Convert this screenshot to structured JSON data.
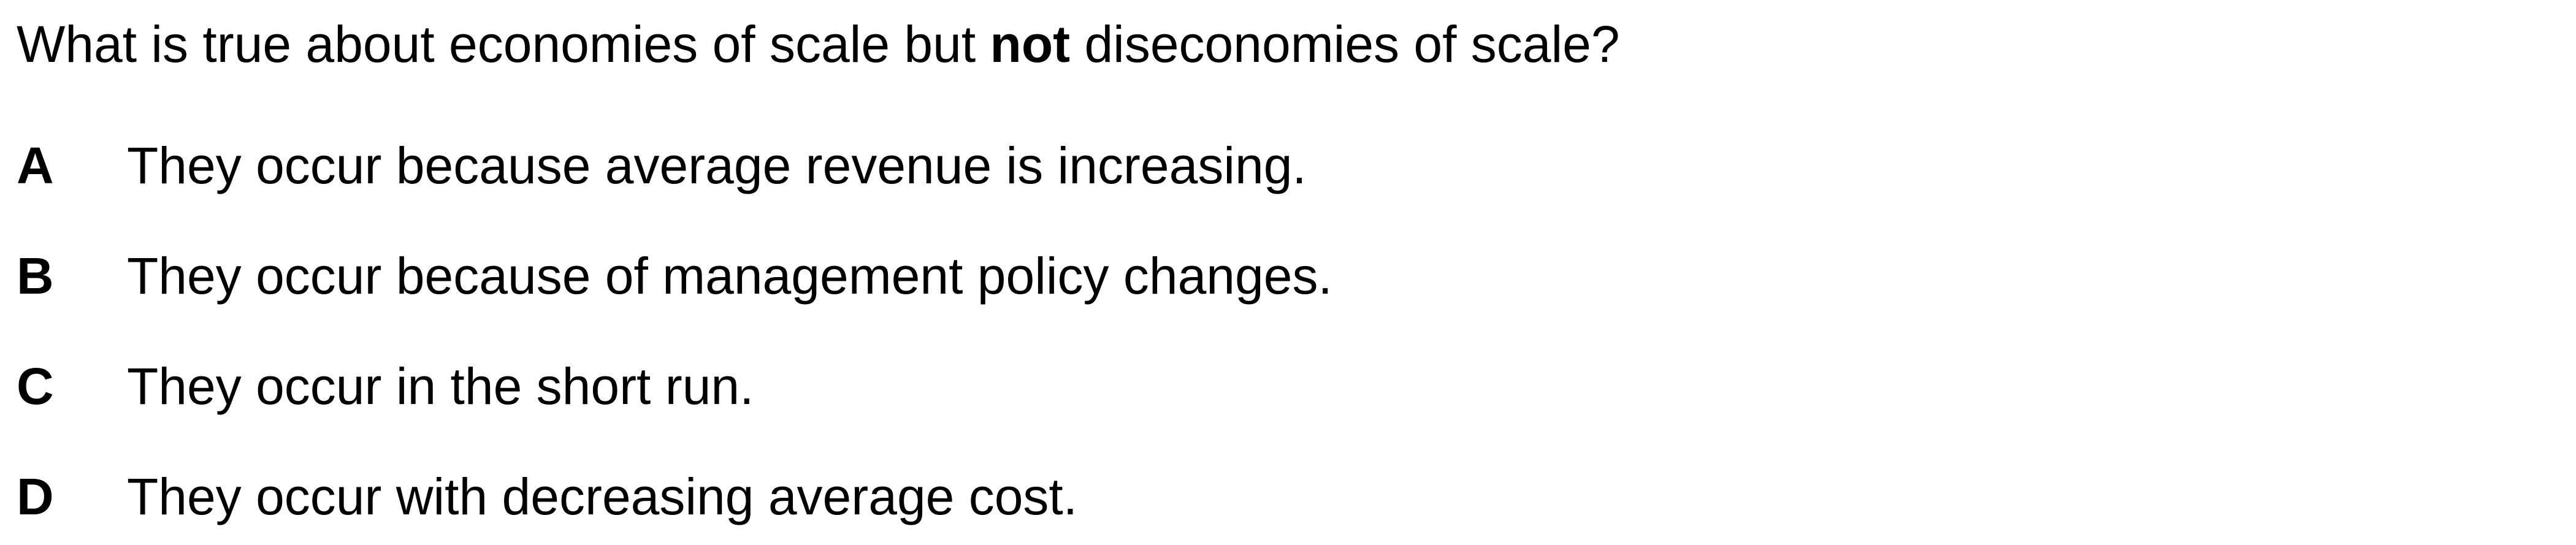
{
  "question": {
    "prefix": "What is true about economies of scale but ",
    "emphasis": "not",
    "suffix": " diseconomies of scale?"
  },
  "options": [
    {
      "letter": "A",
      "text": "They occur because average revenue is increasing."
    },
    {
      "letter": "B",
      "text": "They occur because of management policy changes."
    },
    {
      "letter": "C",
      "text": "They occur in the short run."
    },
    {
      "letter": "D",
      "text": "They occur with decreasing average cost."
    }
  ]
}
